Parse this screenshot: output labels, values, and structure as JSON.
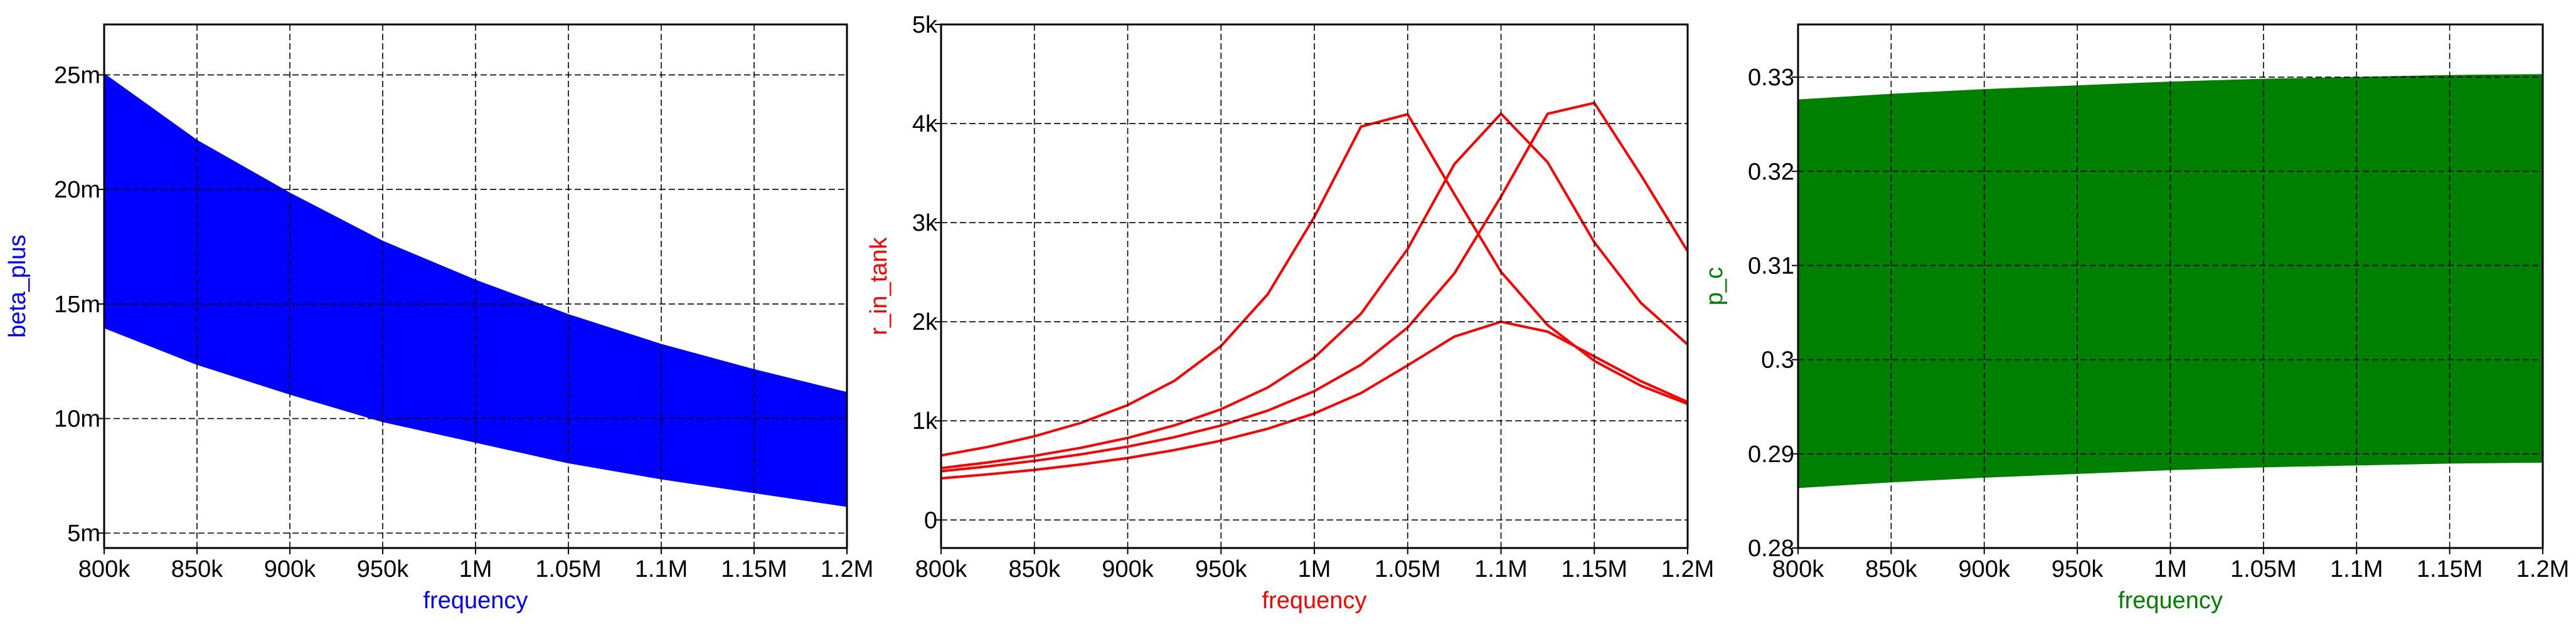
{
  "chart_data": [
    {
      "type": "line",
      "x_label": "frequency",
      "y_label": "beta_plus",
      "color": "#0000ff",
      "grid": true,
      "fill_between": true,
      "x": [
        800000,
        850000,
        900000,
        950000,
        1000000,
        1050000,
        1100000,
        1150000,
        1200000
      ],
      "xlim": [
        800000,
        1200000
      ],
      "xticks": [
        {
          "value": 800000,
          "label": "800k"
        },
        {
          "value": 850000,
          "label": "850k"
        },
        {
          "value": 900000,
          "label": "900k"
        },
        {
          "value": 950000,
          "label": "950k"
        },
        {
          "value": 1000000,
          "label": "1M"
        },
        {
          "value": 1050000,
          "label": "1.05M"
        },
        {
          "value": 1100000,
          "label": "1.1M"
        },
        {
          "value": 1150000,
          "label": "1.15M"
        },
        {
          "value": 1200000,
          "label": "1.2M"
        }
      ],
      "ylim": [
        0.00435,
        0.0272
      ],
      "yticks": [
        {
          "value": 0.005,
          "label": "5m"
        },
        {
          "value": 0.01,
          "label": "10m"
        },
        {
          "value": 0.015,
          "label": "15m"
        },
        {
          "value": 0.02,
          "label": "20m"
        },
        {
          "value": 0.025,
          "label": "25m"
        }
      ],
      "series": [
        {
          "values": [
            0.025,
            0.0221,
            0.0198,
            0.0177,
            0.016,
            0.0145,
            0.0132,
            0.0121,
            0.0111
          ]
        },
        {
          "values": [
            0.022,
            0.0195,
            0.0174,
            0.0156,
            0.0141,
            0.0128,
            0.0116,
            0.0106,
            0.0098
          ]
        },
        {
          "values": [
            0.019,
            0.0168,
            0.015,
            0.0135,
            0.0122,
            0.011,
            0.01,
            0.0092,
            0.0084
          ]
        },
        {
          "values": [
            0.0165,
            0.0146,
            0.013,
            0.0117,
            0.0106,
            0.0096,
            0.0087,
            0.008,
            0.0073
          ]
        },
        {
          "values": [
            0.014,
            0.0124,
            0.0111,
            0.0099,
            0.009,
            0.0081,
            0.0074,
            0.0068,
            0.0062
          ]
        }
      ]
    },
    {
      "type": "line",
      "x_label": "frequency",
      "y_label": "r_in_tank",
      "color": "#ff0000",
      "grid": true,
      "fill_between": false,
      "x": [
        800000,
        825000,
        850000,
        875000,
        900000,
        925000,
        950000,
        975000,
        1000000,
        1025000,
        1050000,
        1075000,
        1100000,
        1125000,
        1150000,
        1175000,
        1200000
      ],
      "xlim": [
        800000,
        1200000
      ],
      "xticks": [
        {
          "value": 800000,
          "label": "800k"
        },
        {
          "value": 850000,
          "label": "850k"
        },
        {
          "value": 900000,
          "label": "900k"
        },
        {
          "value": 950000,
          "label": "950k"
        },
        {
          "value": 1000000,
          "label": "1M"
        },
        {
          "value": 1050000,
          "label": "1.05M"
        },
        {
          "value": 1100000,
          "label": "1.1M"
        },
        {
          "value": 1150000,
          "label": "1.15M"
        },
        {
          "value": 1200000,
          "label": "1.2M"
        }
      ],
      "ylim": [
        -283,
        5000
      ],
      "yticks": [
        0,
        {
          "value": 1000,
          "label": "1k"
        },
        {
          "value": 2000,
          "label": "2k"
        },
        {
          "value": 3000,
          "label": "3k"
        },
        {
          "value": 4000,
          "label": "4k"
        },
        {
          "value": 5000,
          "label": "5k"
        }
      ],
      "series": [
        {
          "values": [
            651,
            737,
            844,
            980,
            1159,
            1404,
            1755,
            2277,
            3057,
            3969,
            4094,
            3287,
            2504,
            1966,
            1605,
            1354,
            1171
          ]
        },
        {
          "values": [
            523,
            580,
            647,
            728,
            828,
            954,
            1117,
            1336,
            1640,
            2081,
            2735,
            3590,
            4100,
            3609,
            2802,
            2189,
            1770
          ]
        },
        {
          "values": [
            492,
            540,
            596,
            662,
            740,
            835,
            953,
            1103,
            1300,
            1566,
            1942,
            2487,
            3263,
            4099,
            4208,
            3479,
            2711
          ]
        },
        {
          "values": [
            420,
            460,
            505,
            560,
            625,
            705,
            800,
            920,
            1075,
            1280,
            1560,
            1850,
            2000,
            1900,
            1650,
            1400,
            1190
          ]
        }
      ]
    },
    {
      "type": "line",
      "x_label": "frequency",
      "y_label": "p_c",
      "color": "#008000",
      "grid": true,
      "fill_between": true,
      "x": [
        800000,
        850000,
        900000,
        950000,
        1000000,
        1050000,
        1100000,
        1150000,
        1200000
      ],
      "xlim": [
        800000,
        1200000
      ],
      "xticks": [
        {
          "value": 800000,
          "label": "800k"
        },
        {
          "value": 850000,
          "label": "850k"
        },
        {
          "value": 900000,
          "label": "900k"
        },
        {
          "value": 950000,
          "label": "950k"
        },
        {
          "value": 1000000,
          "label": "1M"
        },
        {
          "value": 1050000,
          "label": "1.05M"
        },
        {
          "value": 1100000,
          "label": "1.1M"
        },
        {
          "value": 1150000,
          "label": "1.15M"
        },
        {
          "value": 1200000,
          "label": "1.2M"
        }
      ],
      "ylim": [
        0.28,
        0.3356
      ],
      "yticks": [
        0.28,
        0.29,
        0.3,
        0.31,
        0.32,
        0.33
      ],
      "series": [
        {
          "values": [
            0.3275,
            0.3281,
            0.3286,
            0.329,
            0.3294,
            0.3297,
            0.3299,
            0.3301,
            0.3302
          ]
        },
        {
          "values": [
            0.319,
            0.3196,
            0.3201,
            0.3205,
            0.3209,
            0.3212,
            0.3214,
            0.3216,
            0.3217
          ]
        },
        {
          "values": [
            0.31,
            0.3106,
            0.3111,
            0.3115,
            0.3119,
            0.3122,
            0.3124,
            0.3126,
            0.3127
          ]
        },
        {
          "values": [
            0.3,
            0.3006,
            0.3011,
            0.3015,
            0.3019,
            0.3022,
            0.3024,
            0.3026,
            0.3027
          ]
        },
        {
          "values": [
            0.2925,
            0.2931,
            0.2936,
            0.294,
            0.2944,
            0.2947,
            0.2949,
            0.2951,
            0.2952
          ]
        },
        {
          "values": [
            0.2865,
            0.2871,
            0.2876,
            0.288,
            0.2884,
            0.2887,
            0.2889,
            0.2891,
            0.2892
          ]
        }
      ]
    }
  ]
}
